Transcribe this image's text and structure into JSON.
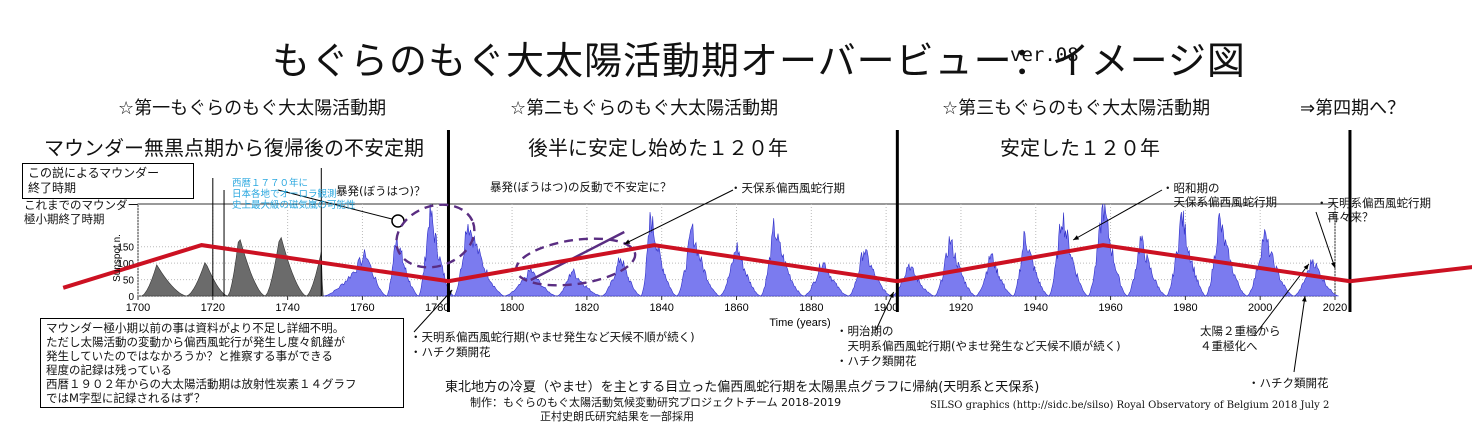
{
  "title": "もぐらのもぐ大太陽活動期オーバービュー：イメージ図",
  "version": "ver.08",
  "periods": [
    {
      "heading": "☆第一もぐらのもぐ大太陽活動期",
      "subtitle": "マウンダー無黒点期から復帰後の不安定期"
    },
    {
      "heading": "☆第二もぐらのもぐ大太陽活動期",
      "subtitle": "後半に安定し始めた１２０年"
    },
    {
      "heading": "☆第三もぐらのもぐ大太陽活動期",
      "subtitle": "安定した１２０年"
    },
    {
      "heading": "⇒第四期へ？",
      "subtitle": ""
    }
  ],
  "boxes": {
    "maunder_end_theory": "この説によるマウンダー\n終了時期",
    "maunder_end_conventional": "これまでのマウンダー\n極小期終了時期",
    "note": "マウンダー極小期以前の事は資料がより不足し詳細不明。\nただし太陽活動の変動から偏西風蛇行が発生し度々飢饉が\n発生していたのではなかろうか？と推察する事ができる\n程度の記録は残っている\n西暦１９０２年からの大太陽活動期は放射性炭素１４グラフ\nではM字型に記録されるはず？"
  },
  "annotations": {
    "aurora": "西暦１７７０年に\n日本各地でオーロラ観測\n史上最大級の磁気嵐の可能性",
    "outburst": "暴発(ぼうはつ)？",
    "outburst_reaction": "暴発(ぼうはつ)の反動で不安定に？",
    "tenpo": "・天保系偏西風蛇行期",
    "showa": "・昭和期の\n　天保系偏西風蛇行期",
    "tenmei_again": "・天明系偏西風蛇行期\n　再々来？",
    "tenmei": "・天明系偏西風蛇行期(やませ発生など天候不順が続く)\n・ハチク類開花",
    "meiji": "・明治期の\n　天明系偏西風蛇行期(やませ発生など天候不順が続く)\n・ハチク類開花",
    "pole": "太陽２重極から\n４重極化へ",
    "hachiku": "・ハチク類開花"
  },
  "footer": {
    "main": "東北地方の冷夏（やませ）を主とする目立った偏西風蛇行期を太陽黒点グラフに帰納(天明系と天保系)",
    "credit1": "制作：もぐらのもぐ太陽活動気候変動研究プロジェクトチーム 2018-2019",
    "credit2": "正村史朗氏研究結果を一部採用",
    "silso": "SILSO graphics (http://sidc.be/silso)  Royal Observatory of Belgium  2018 July 2"
  },
  "chart_data": {
    "type": "area",
    "xlabel": "Time (years)",
    "ylabel": "Sunspot n.",
    "xlim": [
      1700,
      2020
    ],
    "ylim": [
      0,
      280
    ],
    "xticks": [
      1700,
      1720,
      1740,
      1760,
      1780,
      1800,
      1820,
      1840,
      1860,
      1880,
      1900,
      1920,
      1940,
      1960,
      1980,
      2000,
      2020
    ],
    "yticks": [
      0,
      50,
      100,
      150
    ],
    "series": [
      {
        "values_kind": "yearly_sunspot_maxima_1700_1749",
        "color": "#6b6b6b",
        "peaks": [
          [
            1705,
            95
          ],
          [
            1718,
            105
          ],
          [
            1727,
            185
          ],
          [
            1738,
            190
          ],
          [
            1749,
            135
          ]
        ]
      },
      {
        "values_kind": "monthly_sunspot_1749_2018",
        "color": "#7b7bef",
        "peaks": [
          [
            1761,
            130
          ],
          [
            1769,
            190
          ],
          [
            1778,
            265
          ],
          [
            1788,
            235
          ],
          [
            1805,
            80
          ],
          [
            1816,
            80
          ],
          [
            1829,
            120
          ],
          [
            1837,
            245
          ],
          [
            1848,
            205
          ],
          [
            1860,
            155
          ],
          [
            1870,
            210
          ],
          [
            1883,
            110
          ],
          [
            1894,
            145
          ],
          [
            1906,
            100
          ],
          [
            1917,
            175
          ],
          [
            1928,
            130
          ],
          [
            1937,
            190
          ],
          [
            1947,
            255
          ],
          [
            1958,
            285
          ],
          [
            1968,
            175
          ],
          [
            1979,
            250
          ],
          [
            1989,
            235
          ],
          [
            2001,
            190
          ],
          [
            2014,
            115
          ]
        ]
      }
    ],
    "trend_line": {
      "color": "#cc1122",
      "points": [
        [
          1680,
          25
        ],
        [
          1717,
          155
        ],
        [
          1783,
          45
        ],
        [
          1838,
          155
        ],
        [
          1903,
          45
        ],
        [
          1958,
          155
        ],
        [
          2024,
          45
        ],
        [
          2062,
          95
        ]
      ]
    },
    "period_dividers": [
      1783,
      1903,
      2024
    ],
    "grid": true
  },
  "colors": {
    "trend": "#cc1122",
    "spots_modern": "#7b7bef",
    "spots_old": "#6b6b6b",
    "dashed": "#5a2d82",
    "aurora_text": "#2aa7df"
  }
}
